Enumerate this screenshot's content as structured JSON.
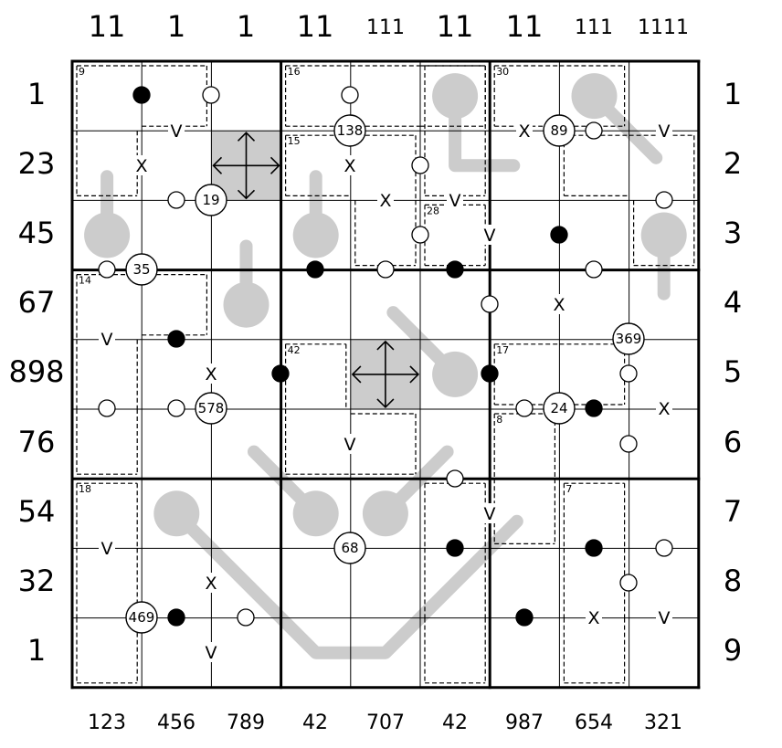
{
  "grid": {
    "size": 9,
    "colors": {
      "line": "#000000",
      "thermo": "#cccccc",
      "shade": "#cccccc",
      "cage": "#000000",
      "dot_white": "#ffffff",
      "dot_black": "#000000"
    }
  },
  "clues": {
    "top": [
      "11",
      "1",
      "1",
      "11",
      "111",
      "11",
      "11",
      "111",
      "1111"
    ],
    "left": [
      "1",
      "23",
      "45",
      "67",
      "898",
      "76",
      "54",
      "32",
      "1"
    ],
    "right": [
      "1",
      "2",
      "3",
      "4",
      "5",
      "6",
      "7",
      "8",
      "9"
    ],
    "bottom": [
      "123",
      "456",
      "789",
      "42",
      "707",
      "42",
      "987",
      "654",
      "321"
    ]
  },
  "cages": [
    {
      "sum": "9"
    },
    {
      "sum": "16"
    },
    {
      "sum": "30"
    },
    {
      "sum": "15"
    },
    {
      "sum": "28"
    },
    {
      "sum": "14"
    },
    {
      "sum": "42"
    },
    {
      "sum": "17"
    },
    {
      "sum": "8"
    },
    {
      "sum": "18"
    },
    {
      "sum": "7"
    }
  ],
  "markers": [
    {
      "label": "X",
      "icon": "x-marker"
    },
    {
      "label": "V",
      "icon": "v-marker"
    }
  ],
  "circles": [
    {
      "label": "138"
    },
    {
      "label": "89"
    },
    {
      "label": "19"
    },
    {
      "label": "35"
    },
    {
      "label": "369"
    },
    {
      "label": "578"
    },
    {
      "label": "24"
    },
    {
      "label": "68"
    },
    {
      "label": "469"
    }
  ],
  "shaded": [
    {
      "icon": "four-arrows-icon"
    },
    {
      "icon": "four-arrows-icon"
    }
  ]
}
